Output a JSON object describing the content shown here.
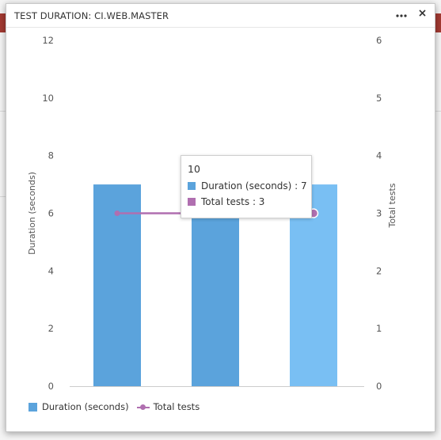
{
  "dialog": {
    "title": "TEST DURATION: CI.WEB.MASTER",
    "more_label": "•••",
    "close_label": "✕"
  },
  "chart_data": {
    "type": "bar",
    "categories": [
      "",
      "10",
      ""
    ],
    "series": [
      {
        "name": "Duration (seconds)",
        "type": "bar",
        "axis": "left",
        "values": [
          7,
          7,
          7
        ],
        "color": "#5ba3dc"
      },
      {
        "name": "Total tests",
        "type": "line",
        "axis": "right",
        "values": [
          3,
          3,
          3
        ],
        "color": "#b06fb0"
      }
    ],
    "ylabel": "Duration (seconds)",
    "y2label": "Total tests",
    "ylim": [
      0,
      12
    ],
    "y2lim": [
      0,
      6
    ],
    "yticks": [
      "0",
      "2",
      "4",
      "6",
      "8",
      "10",
      "12"
    ],
    "y2ticks": [
      "0",
      "1",
      "2",
      "3",
      "4",
      "5",
      "6"
    ],
    "highlight_index": 2,
    "highlight_color": "#79bff3",
    "legend_position": "bottom-left",
    "grid": false
  },
  "tooltip": {
    "category": "10",
    "duration_label": "Duration (seconds) : 7",
    "tests_label": "Total tests : 3"
  },
  "legend": {
    "duration": "Duration (seconds)",
    "tests": "Total tests"
  }
}
